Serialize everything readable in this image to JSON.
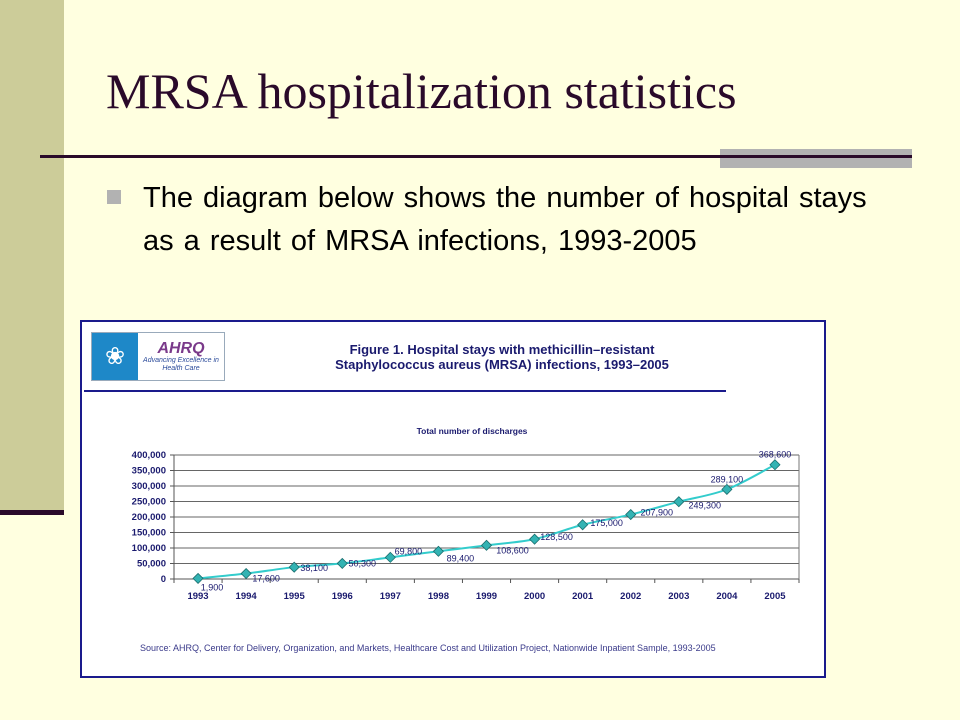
{
  "slide": {
    "title": "MRSA hospitalization statistics",
    "bullet": "The diagram below shows the number of hospital stays as a result of MRSA infections, 1993-2005"
  },
  "figure": {
    "logo": {
      "name": "AHRQ",
      "tagline": "Advancing Excellence in Health Care",
      "icon": "hhs-eagle-icon"
    },
    "title_line1": "Figure 1. Hospital stays with methicillin–resistant",
    "title_line2": "Staphylococcus aureus (MRSA) infections, 1993–2005",
    "source": "Source: AHRQ, Center for Delivery, Organization, and Markets, Healthcare Cost and Utilization Project, Nationwide Inpatient Sample, 1993-2005"
  },
  "colors": {
    "background": "#ffffe0",
    "sidebar": "#cccc99",
    "title": "#2a0a2a",
    "frame": "#1a1a8c",
    "series": "#33cccc",
    "text_navy": "#1a1a6e"
  },
  "chart_data": {
    "type": "line",
    "title": "Total number of discharges",
    "xlabel": "",
    "ylabel": "",
    "categories": [
      "1993",
      "1994",
      "1995",
      "1996",
      "1997",
      "1998",
      "1999",
      "2000",
      "2001",
      "2002",
      "2003",
      "2004",
      "2005"
    ],
    "series": [
      {
        "name": "Total number of discharges",
        "values": [
          1900,
          17600,
          38100,
          50300,
          69800,
          89400,
          108600,
          128500,
          175000,
          207900,
          249300,
          289100,
          368600
        ],
        "labels": [
          "1,900",
          "17,600",
          "38,100",
          "50,300",
          "69,800",
          "89,400",
          "108,600",
          "128,500",
          "175,000",
          "207,900",
          "249,300",
          "289,100",
          "368,600"
        ]
      }
    ],
    "ylim": [
      0,
      400000
    ],
    "yticks": [
      0,
      50000,
      100000,
      150000,
      200000,
      250000,
      300000,
      350000,
      400000
    ],
    "ytick_labels": [
      "0",
      "50,000",
      "100,000",
      "150,000",
      "200,000",
      "250,000",
      "300,000",
      "350,000",
      "400,000"
    ],
    "grid": true,
    "marker": "diamond",
    "legend": "none"
  }
}
